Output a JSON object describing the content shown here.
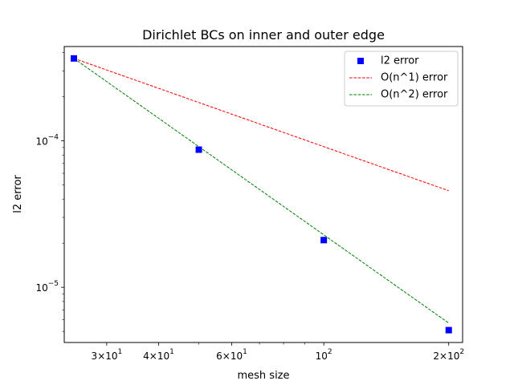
{
  "chart_data": {
    "type": "scatter",
    "title": "Dirichlet BCs on inner and outer edge",
    "xlabel": "mesh size",
    "ylabel": "l2 error",
    "x_scale": "log",
    "y_scale": "log",
    "xlim": [
      23.7,
      216
    ],
    "ylim": [
      4.2e-06,
      0.00044
    ],
    "grid": false,
    "legend_position": "top-right",
    "x_ticks": [
      {
        "value": 30,
        "base": "3",
        "exp": "1"
      },
      {
        "value": 40,
        "base": "4",
        "exp": "1"
      },
      {
        "value": 60,
        "base": "6",
        "exp": "1"
      },
      {
        "value": 100,
        "base": "",
        "exp": "2"
      },
      {
        "value": 200,
        "base": "2",
        "exp": "2"
      }
    ],
    "x_minor_ticks": [
      50,
      70,
      80,
      90
    ],
    "y_ticks": [
      {
        "value": 1e-05,
        "base": "",
        "exp": "−5"
      },
      {
        "value": 0.0001,
        "base": "",
        "exp": "−4"
      }
    ],
    "y_minor_ticks": [
      5e-06,
      6e-06,
      7e-06,
      8e-06,
      9e-06,
      2e-05,
      3e-05,
      4e-05,
      5e-05,
      6e-05,
      7e-05,
      8e-05,
      9e-05,
      0.0002,
      0.0003,
      0.0004
    ],
    "series": [
      {
        "name": "l2 error",
        "style": "marker",
        "color": "#0000ff",
        "x": [
          25,
          50,
          100,
          200
        ],
        "y": [
          0.000365,
          8.7e-05,
          2.1e-05,
          5.1e-06
        ]
      },
      {
        "name": "O(n^1) error",
        "style": "dashed",
        "color": "#ff0000",
        "x": [
          25,
          200
        ],
        "y": [
          0.000365,
          4.56e-05
        ]
      },
      {
        "name": "O(n^2) error",
        "style": "dashed",
        "color": "#008000",
        "x": [
          25,
          200
        ],
        "y": [
          0.000365,
          5.7e-06
        ]
      }
    ]
  }
}
